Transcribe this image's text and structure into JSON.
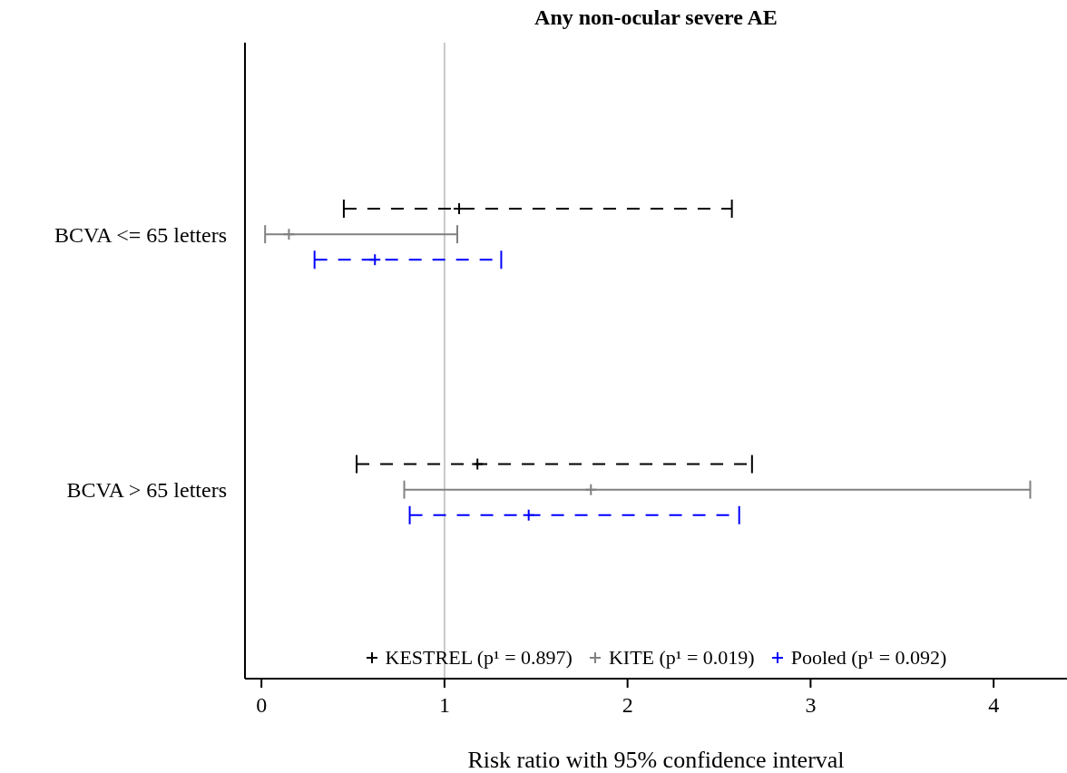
{
  "chart_data": {
    "type": "scatter",
    "orientation": "horizontal",
    "title": "Any non-ocular severe AE",
    "xlabel": "Risk ratio with 95% confidence interval",
    "categories": [
      "BCVA <= 65 letters",
      "BCVA > 65 letters"
    ],
    "series": [
      {
        "name": "KESTREL (p¹ = 0.897)",
        "color": "#000000",
        "line_style": "dashed",
        "values": [
          1.08,
          1.18
        ],
        "errors": [
          [
            0.45,
            2.57
          ],
          [
            0.52,
            2.68
          ]
        ]
      },
      {
        "name": "KITE (p¹ = 0.019)",
        "color": "#808080",
        "line_style": "solid",
        "values": [
          0.15,
          1.8
        ],
        "errors": [
          [
            0.02,
            1.07
          ],
          [
            0.78,
            4.2
          ]
        ]
      },
      {
        "name": "Pooled (p¹ = 0.092)",
        "color": "#0000ff",
        "line_style": "dashed",
        "values": [
          0.62,
          1.46
        ],
        "errors": [
          [
            0.29,
            1.31
          ],
          [
            0.81,
            2.61
          ]
        ]
      }
    ],
    "xlim": [
      -0.09,
      4.5
    ],
    "xticks": [
      0,
      1,
      2,
      3,
      4
    ],
    "ref_lines": [
      {
        "axis": "x",
        "value": 1,
        "color": "#c8c8c8"
      }
    ],
    "marker": "cross",
    "grid": false,
    "legend": "bottom"
  }
}
